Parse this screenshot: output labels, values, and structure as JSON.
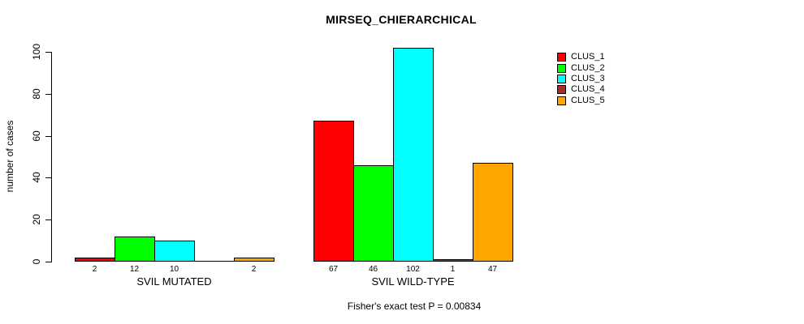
{
  "chart_data": {
    "type": "bar",
    "title": "MIRSEQ_CHIERARCHICAL",
    "ylabel": "number of cases",
    "xlabel": "",
    "yticks": [
      0,
      20,
      40,
      60,
      80,
      100
    ],
    "ylim": [
      0,
      110
    ],
    "grid": false,
    "legend_position": "top-right",
    "categories": [
      "SVIL MUTATED",
      "SVIL WILD-TYPE"
    ],
    "series": [
      {
        "name": "CLUS_1",
        "color": "#FF0000",
        "values": [
          2,
          67
        ]
      },
      {
        "name": "CLUS_2",
        "color": "#00FF00",
        "values": [
          12,
          46
        ]
      },
      {
        "name": "CLUS_3",
        "color": "#00FFFF",
        "values": [
          10,
          102
        ]
      },
      {
        "name": "CLUS_4",
        "color": "#A52A2A",
        "values": [
          0,
          1
        ]
      },
      {
        "name": "CLUS_5",
        "color": "#FFA500",
        "values": [
          2,
          47
        ]
      }
    ],
    "bar_value_labels": [
      [
        "2",
        "12",
        "10",
        "",
        "2"
      ],
      [
        "67",
        "46",
        "102",
        "1",
        "47"
      ]
    ],
    "annotation": "Fisher's exact test P = 0.00834"
  }
}
